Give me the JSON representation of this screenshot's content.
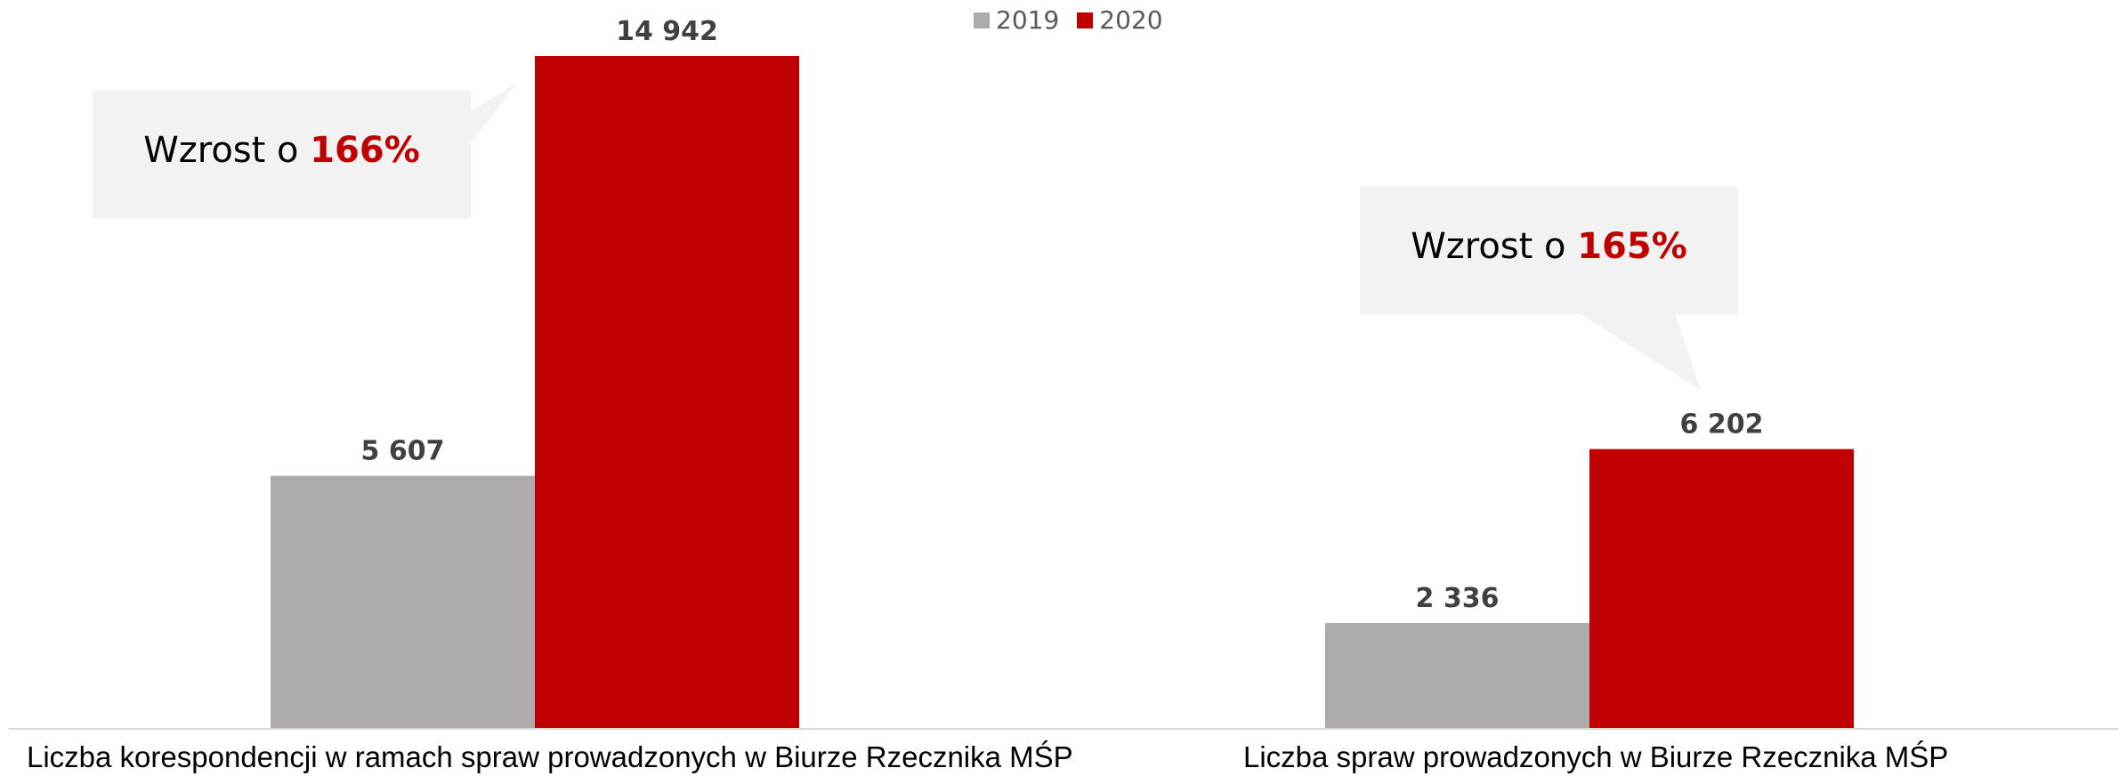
{
  "colors": {
    "series_2019": "#afabab",
    "series_2020": "#c00000",
    "callout_bg": "#f2f2f2",
    "value_label": "#404040",
    "axis": "#d9d9d9"
  },
  "chart_data": {
    "type": "bar",
    "categories": [
      "Liczba korespondencji w ramach spraw prowadzonych w Biurze Rzecznika MŚP",
      "Liczba spraw prowadzonych w Biurze Rzecznika MŚP"
    ],
    "series": [
      {
        "name": "2019",
        "values": [
          5607,
          2336
        ],
        "labels": [
          "5 607",
          "2 336"
        ]
      },
      {
        "name": "2020",
        "values": [
          14942,
          6202
        ],
        "labels": [
          "14 942",
          "6 202"
        ]
      }
    ],
    "ylim": [
      0,
      15000
    ],
    "grid": false,
    "legend_position": "top-center",
    "annotations": [
      {
        "prefix": "Wzrost o ",
        "value": "166%"
      },
      {
        "prefix": "Wzrost o ",
        "value": "165%"
      }
    ]
  }
}
